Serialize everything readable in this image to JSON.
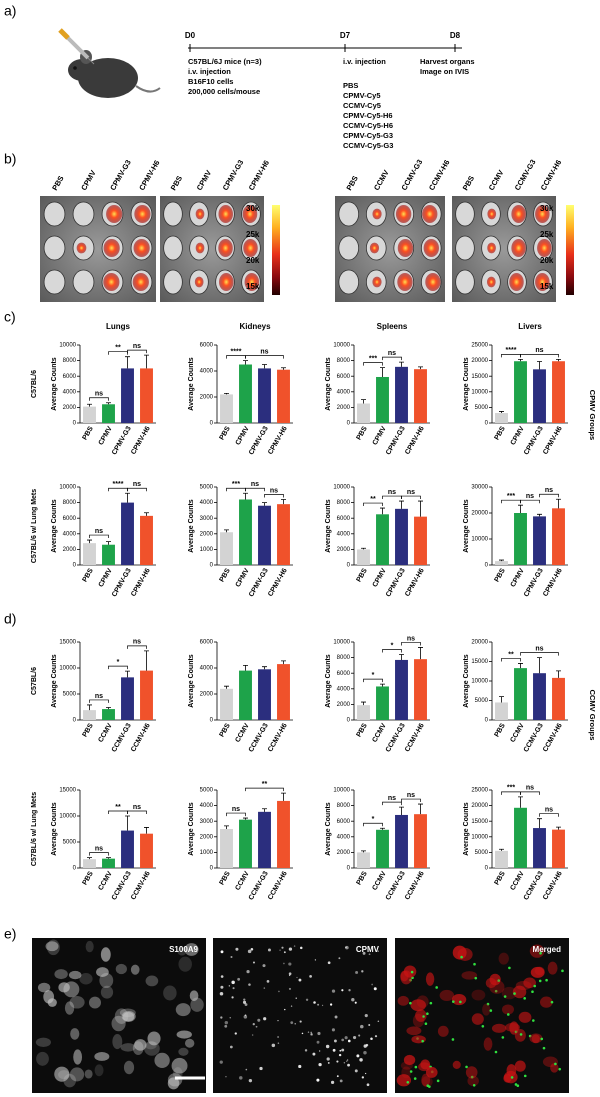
{
  "panel_letters": [
    "a)",
    "b)",
    "c)",
    "d)",
    "e)"
  ],
  "timeline": {
    "days": [
      "D0",
      "D7",
      "D8"
    ],
    "d0_text": [
      "C57BL/6J mice (n=3)",
      "i.v. injection",
      "B16F10 cells",
      "200,000 cells/mouse"
    ],
    "d7_text": [
      "i.v. injection"
    ],
    "d7_groups": [
      "PBS",
      "CPMV-Cy5",
      "CCMV-Cy5",
      "CPMV-Cy5-H6",
      "CCMV-Cy5-H6",
      "CPMV-Cy5-G3",
      "CCMV-Cy5-G3"
    ],
    "d8_text": [
      "Harvest organs",
      "Image on IVIS"
    ]
  },
  "imaging": {
    "groups": [
      [
        "PBS",
        "CPMV",
        "CPMV-G3",
        "CPMV-H6"
      ],
      [
        "PBS",
        "CPMV",
        "CPMV-G3",
        "CPMV-H6"
      ],
      [
        "PBS",
        "CCMV",
        "CCMV-G3",
        "CCMV-H6"
      ],
      [
        "PBS",
        "CCMV",
        "CCMV-G3",
        "CCMV-H6"
      ]
    ],
    "colorbar_labels": [
      "30k",
      "25k",
      "20k",
      "15k"
    ]
  },
  "side_labels": [
    "CPMV Groups",
    "CCMV Groups"
  ],
  "chart_data": [
    {
      "type": "bar",
      "title": "Lungs",
      "row_label": "C57BL/6",
      "y_label": "Average  Counts",
      "categories": [
        "PBS",
        "CPMV",
        "CPMV-G3",
        "CPMV-H6"
      ],
      "values": [
        2100,
        2400,
        7000,
        7000
      ],
      "errors": [
        300,
        200,
        1500,
        1700
      ],
      "colors": [
        "#d3d3d3",
        "#1ea34a",
        "#2b2e7e",
        "#f0522b"
      ],
      "ylim": [
        0,
        10000
      ],
      "yticks": [
        0,
        2000,
        4000,
        6000,
        8000,
        10000
      ],
      "annotations": [
        {
          "text": "ns",
          "between": [
            0,
            1
          ]
        },
        {
          "text": "**",
          "between": [
            1,
            2
          ]
        },
        {
          "text": "ns",
          "between": [
            2,
            3
          ]
        }
      ]
    },
    {
      "type": "bar",
      "title": "Kidneys",
      "y_label": "Average  Counts",
      "categories": [
        "PBS",
        "CPMV",
        "CPMV-G3",
        "CPMV-H6"
      ],
      "values": [
        2200,
        4500,
        4200,
        4100
      ],
      "errors": [
        80,
        300,
        300,
        150
      ],
      "colors": [
        "#d3d3d3",
        "#1ea34a",
        "#2b2e7e",
        "#f0522b"
      ],
      "ylim": [
        0,
        6000
      ],
      "yticks": [
        0,
        2000,
        4000,
        6000
      ],
      "annotations": [
        {
          "text": "****",
          "between": [
            0,
            1
          ]
        },
        {
          "text": "ns",
          "between": [
            1,
            3
          ]
        }
      ]
    },
    {
      "type": "bar",
      "title": "Spleens",
      "y_label": "Average  Counts",
      "categories": [
        "PBS",
        "CPMV",
        "CPMV-G3",
        "CPMV-H6"
      ],
      "values": [
        2500,
        5900,
        7200,
        6900
      ],
      "errors": [
        500,
        1200,
        600,
        300
      ],
      "colors": [
        "#d3d3d3",
        "#1ea34a",
        "#2b2e7e",
        "#f0522b"
      ],
      "ylim": [
        0,
        10000
      ],
      "yticks": [
        0,
        2000,
        4000,
        6000,
        8000,
        10000
      ],
      "annotations": [
        {
          "text": "***",
          "between": [
            0,
            1
          ]
        },
        {
          "text": "ns",
          "between": [
            1,
            2
          ]
        }
      ]
    },
    {
      "type": "bar",
      "title": "Livers",
      "y_label": "Average  Counts",
      "categories": [
        "PBS",
        "CPMV",
        "CPMV-G3",
        "CPMV-H6"
      ],
      "values": [
        3200,
        19800,
        17200,
        19800
      ],
      "errors": [
        500,
        600,
        2500,
        600
      ],
      "colors": [
        "#d3d3d3",
        "#1ea34a",
        "#2b2e7e",
        "#f0522b"
      ],
      "ylim": [
        0,
        25000
      ],
      "yticks": [
        0,
        5000,
        10000,
        15000,
        20000,
        25000
      ],
      "annotations": [
        {
          "text": "****",
          "between": [
            0,
            1
          ]
        },
        {
          "text": "ns",
          "between": [
            1,
            3
          ]
        }
      ]
    },
    {
      "type": "bar",
      "row_label": "C57BL/6 w/ Lung Mets",
      "y_label": "Average  Counts",
      "categories": [
        "PBS",
        "CPMV",
        "CPMV-G3",
        "CPMV-H6"
      ],
      "values": [
        2800,
        2600,
        8000,
        6300
      ],
      "errors": [
        400,
        400,
        1200,
        400
      ],
      "colors": [
        "#d3d3d3",
        "#1ea34a",
        "#2b2e7e",
        "#f0522b"
      ],
      "ylim": [
        0,
        10000
      ],
      "yticks": [
        0,
        2000,
        4000,
        6000,
        8000,
        10000
      ],
      "annotations": [
        {
          "text": "ns",
          "between": [
            0,
            1
          ]
        },
        {
          "text": "****",
          "between": [
            1,
            2
          ]
        },
        {
          "text": "ns",
          "between": [
            2,
            3
          ]
        }
      ]
    },
    {
      "type": "bar",
      "y_label": "Average  Counts",
      "categories": [
        "PBS",
        "CPMV",
        "CPMV-G3",
        "CPMV-H6"
      ],
      "values": [
        2100,
        4200,
        3800,
        3900
      ],
      "errors": [
        150,
        400,
        200,
        300
      ],
      "colors": [
        "#d3d3d3",
        "#1ea34a",
        "#2b2e7e",
        "#f0522b"
      ],
      "ylim": [
        0,
        5000
      ],
      "yticks": [
        0,
        1000,
        2000,
        3000,
        4000,
        5000
      ],
      "annotations": [
        {
          "text": "***",
          "between": [
            0,
            1
          ]
        },
        {
          "text": "ns",
          "between": [
            1,
            2
          ]
        },
        {
          "text": "ns",
          "between": [
            2,
            3
          ]
        }
      ]
    },
    {
      "type": "bar",
      "y_label": "Average  Counts",
      "categories": [
        "PBS",
        "CPMV",
        "CPMV-G3",
        "CPMV-H6"
      ],
      "values": [
        2000,
        6500,
        7200,
        6200
      ],
      "errors": [
        150,
        800,
        1000,
        2000
      ],
      "colors": [
        "#d3d3d3",
        "#1ea34a",
        "#2b2e7e",
        "#f0522b"
      ],
      "ylim": [
        0,
        10000
      ],
      "yticks": [
        0,
        2000,
        4000,
        6000,
        8000,
        10000
      ],
      "annotations": [
        {
          "text": "**",
          "between": [
            0,
            1
          ]
        },
        {
          "text": "ns",
          "between": [
            1,
            2
          ]
        },
        {
          "text": "ns",
          "between": [
            2,
            3
          ]
        }
      ]
    },
    {
      "type": "bar",
      "y_label": "Average  Counts",
      "categories": [
        "PBS",
        "CPMV",
        "CPMV-G3",
        "CPMV-H6"
      ],
      "values": [
        1500,
        20000,
        18700,
        21800
      ],
      "errors": [
        400,
        3000,
        800,
        3500
      ],
      "colors": [
        "#d3d3d3",
        "#1ea34a",
        "#2b2e7e",
        "#f0522b"
      ],
      "ylim": [
        0,
        30000
      ],
      "yticks": [
        0,
        10000,
        20000,
        30000
      ],
      "annotations": [
        {
          "text": "***",
          "between": [
            0,
            1
          ]
        },
        {
          "text": "ns",
          "between": [
            1,
            2
          ]
        },
        {
          "text": "ns",
          "between": [
            2,
            3
          ]
        }
      ]
    },
    {
      "type": "bar",
      "row_label": "C57BL/6",
      "y_label": "Average  Counts",
      "categories": [
        "PBS",
        "CCMV",
        "CCMV-G3",
        "CCMV-H6"
      ],
      "values": [
        1900,
        2100,
        8200,
        9500
      ],
      "errors": [
        1000,
        300,
        1200,
        3800
      ],
      "colors": [
        "#d3d3d3",
        "#1ea34a",
        "#2b2e7e",
        "#f0522b"
      ],
      "ylim": [
        0,
        15000
      ],
      "yticks": [
        0,
        5000,
        10000,
        15000
      ],
      "annotations": [
        {
          "text": "ns",
          "between": [
            0,
            1
          ]
        },
        {
          "text": "*",
          "between": [
            1,
            2
          ]
        },
        {
          "text": "ns",
          "between": [
            2,
            3
          ]
        }
      ]
    },
    {
      "type": "bar",
      "y_label": "Average  Counts",
      "categories": [
        "PBS",
        "CCMV",
        "CCMV-G3",
        "CCMV-H6"
      ],
      "values": [
        2400,
        3800,
        3900,
        4300
      ],
      "errors": [
        200,
        400,
        200,
        250
      ],
      "colors": [
        "#d3d3d3",
        "#1ea34a",
        "#2b2e7e",
        "#f0522b"
      ],
      "ylim": [
        0,
        6000
      ],
      "yticks": [
        0,
        2000,
        4000,
        6000
      ],
      "annotations": []
    },
    {
      "type": "bar",
      "y_label": "Average  Counts",
      "categories": [
        "PBS",
        "CCMV",
        "CCMV-G3",
        "CCMV-H6"
      ],
      "values": [
        1900,
        4300,
        7700,
        7800
      ],
      "errors": [
        400,
        300,
        700,
        1500
      ],
      "colors": [
        "#d3d3d3",
        "#1ea34a",
        "#2b2e7e",
        "#f0522b"
      ],
      "ylim": [
        0,
        10000
      ],
      "yticks": [
        0,
        2000,
        4000,
        6000,
        8000,
        10000
      ],
      "annotations": [
        {
          "text": "*",
          "between": [
            0,
            1
          ]
        },
        {
          "text": "*",
          "between": [
            1,
            2
          ]
        },
        {
          "text": "ns",
          "between": [
            2,
            3
          ]
        }
      ]
    },
    {
      "type": "bar",
      "y_label": "Average  Counts",
      "categories": [
        "PBS",
        "CCMV",
        "CCMV-G3",
        "CCMV-H6"
      ],
      "values": [
        4500,
        13300,
        12000,
        10800
      ],
      "errors": [
        1500,
        1200,
        4000,
        1800
      ],
      "colors": [
        "#d3d3d3",
        "#1ea34a",
        "#2b2e7e",
        "#f0522b"
      ],
      "ylim": [
        0,
        20000
      ],
      "yticks": [
        0,
        5000,
        10000,
        15000,
        20000
      ],
      "annotations": [
        {
          "text": "**",
          "between": [
            0,
            1
          ]
        },
        {
          "text": "ns",
          "between": [
            1,
            3
          ]
        }
      ]
    },
    {
      "type": "bar",
      "row_label": "C57BL/6 w/ Lung Mets",
      "y_label": "Average  Counts",
      "categories": [
        "PBS",
        "CCMV",
        "CCMV-G3",
        "CCMV-H6"
      ],
      "values": [
        1700,
        1800,
        7200,
        6600
      ],
      "errors": [
        300,
        200,
        2800,
        1200
      ],
      "colors": [
        "#d3d3d3",
        "#1ea34a",
        "#2b2e7e",
        "#f0522b"
      ],
      "ylim": [
        0,
        15000
      ],
      "yticks": [
        0,
        5000,
        10000,
        15000
      ],
      "annotations": [
        {
          "text": "ns",
          "between": [
            0,
            1
          ]
        },
        {
          "text": "**",
          "between": [
            1,
            2
          ]
        },
        {
          "text": "ns",
          "between": [
            2,
            3
          ]
        }
      ]
    },
    {
      "type": "bar",
      "y_label": "Average  Counts",
      "categories": [
        "PBS",
        "CCMV",
        "CCMV-G3",
        "CCMV-H6"
      ],
      "values": [
        2500,
        3100,
        3600,
        4300
      ],
      "errors": [
        200,
        100,
        200,
        500
      ],
      "colors": [
        "#d3d3d3",
        "#1ea34a",
        "#2b2e7e",
        "#f0522b"
      ],
      "ylim": [
        0,
        5000
      ],
      "yticks": [
        0,
        1000,
        2000,
        3000,
        4000,
        5000
      ],
      "annotations": [
        {
          "text": "ns",
          "between": [
            0,
            1
          ]
        },
        {
          "text": "**",
          "between": [
            1,
            3
          ]
        }
      ]
    },
    {
      "type": "bar",
      "y_label": "Average  Counts",
      "categories": [
        "PBS",
        "CCMV",
        "CCMV-G3",
        "CCMV-H6"
      ],
      "values": [
        2000,
        4900,
        6800,
        6900
      ],
      "errors": [
        200,
        200,
        1000,
        1300
      ],
      "colors": [
        "#d3d3d3",
        "#1ea34a",
        "#2b2e7e",
        "#f0522b"
      ],
      "ylim": [
        0,
        10000
      ],
      "yticks": [
        0,
        2000,
        4000,
        6000,
        8000,
        10000
      ],
      "annotations": [
        {
          "text": "*",
          "between": [
            0,
            1
          ]
        },
        {
          "text": "ns",
          "between": [
            1,
            2
          ]
        },
        {
          "text": "ns",
          "between": [
            2,
            3
          ]
        }
      ]
    },
    {
      "type": "bar",
      "y_label": "Average  Counts",
      "categories": [
        "PBS",
        "CCMV",
        "CCMV-G3",
        "CCMV-H6"
      ],
      "values": [
        5500,
        19300,
        12800,
        12300
      ],
      "errors": [
        500,
        3500,
        3000,
        800
      ],
      "colors": [
        "#d3d3d3",
        "#1ea34a",
        "#2b2e7e",
        "#f0522b"
      ],
      "ylim": [
        0,
        25000
      ],
      "yticks": [
        0,
        5000,
        10000,
        15000,
        20000,
        25000
      ],
      "annotations": [
        {
          "text": "***",
          "between": [
            0,
            1
          ]
        },
        {
          "text": "ns",
          "between": [
            1,
            2
          ]
        },
        {
          "text": "ns",
          "between": [
            2,
            3
          ]
        }
      ]
    }
  ],
  "microscopy": {
    "labels": [
      "S100A9",
      "CPMV",
      "Merged"
    ]
  }
}
